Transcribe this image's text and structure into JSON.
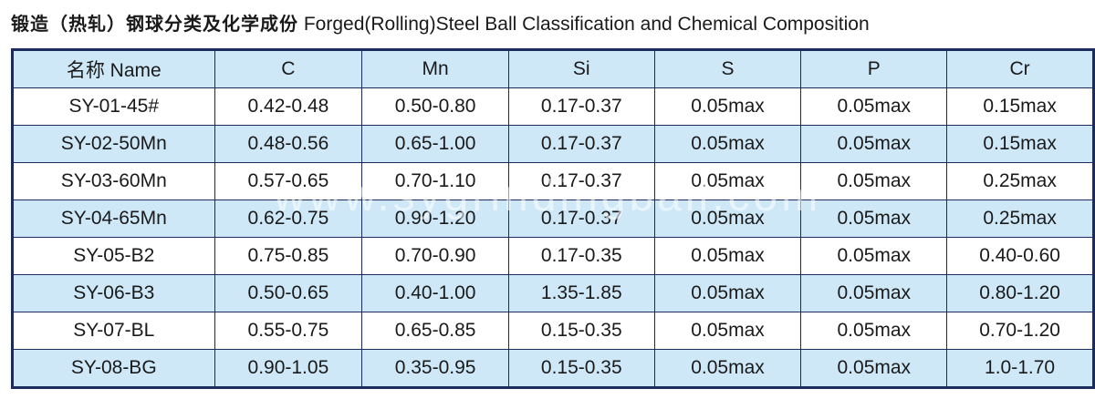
{
  "header": {
    "title_cn": "锻造（热轧）钢球分类及化学成份",
    "title_en": "Forged(Rolling)Steel Ball Classification and Chemical Composition"
  },
  "table": {
    "columns": [
      "名称 Name",
      "C",
      "Mn",
      "Si",
      "S",
      "P",
      "Cr"
    ],
    "rows": [
      [
        "SY-01-45#",
        "0.42-0.48",
        "0.50-0.80",
        "0.17-0.37",
        "0.05max",
        "0.05max",
        "0.15max"
      ],
      [
        "SY-02-50Mn",
        "0.48-0.56",
        "0.65-1.00",
        "0.17-0.37",
        "0.05max",
        "0.05max",
        "0.15max"
      ],
      [
        "SY-03-60Mn",
        "0.57-0.65",
        "0.70-1.10",
        "0.17-0.37",
        "0.05max",
        "0.05max",
        "0.25max"
      ],
      [
        "SY-04-65Mn",
        "0.62-0.75",
        "0.90-1.20",
        "0.17-0.37",
        "0.05max",
        "0.05max",
        "0.25max"
      ],
      [
        "SY-05-B2",
        "0.75-0.85",
        "0.70-0.90",
        "0.17-0.35",
        "0.05max",
        "0.05max",
        "0.40-0.60"
      ],
      [
        "SY-06-B3",
        "0.50-0.65",
        "0.40-1.00",
        "1.35-1.85",
        "0.05max",
        "0.05max",
        "0.80-1.20"
      ],
      [
        "SY-07-BL",
        "0.55-0.75",
        "0.65-0.85",
        "0.15-0.35",
        "0.05max",
        "0.05max",
        "0.70-1.20"
      ],
      [
        "SY-08-BG",
        "0.90-1.05",
        "0.35-0.95",
        "0.15-0.35",
        "0.05max",
        "0.05max",
        "1.0-1.70"
      ]
    ]
  },
  "watermark": "www.sygrindingball.com"
}
